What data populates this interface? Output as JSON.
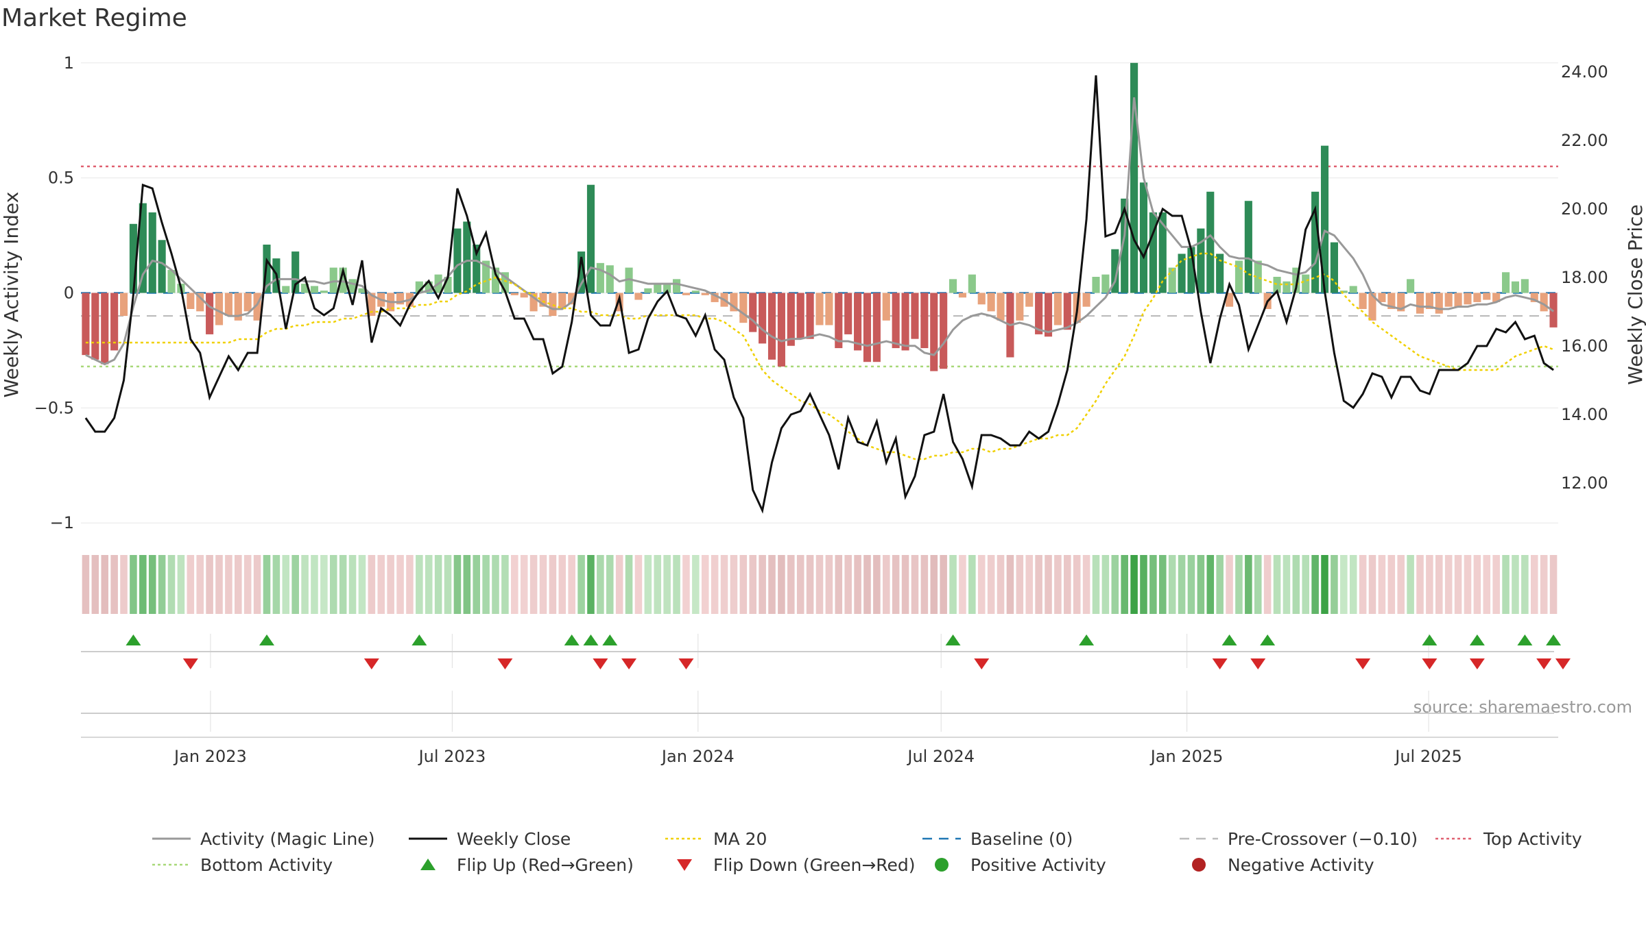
{
  "title": "Market Regime",
  "source": "source: sharemaestro.com",
  "colors": {
    "dark_green": "#2e8b57",
    "light_green": "#8bc98b",
    "dark_red": "#c85a5a",
    "light_red": "#e8a27c",
    "magic_line": "#999999",
    "close": "#111111",
    "ma20": "#f0d000",
    "baseline": "#1f77b4",
    "pre_crossover": "#bbbbbb",
    "top": "#e06070",
    "bottom": "#a8d878",
    "flip_up": "#2ca02c",
    "flip_down": "#d62728"
  },
  "chart_data": {
    "type": "bar+line",
    "title": "Market Regime",
    "xlabel": "",
    "ylabel_left": "Weekly Activity Index",
    "ylabel_right": "Weekly Close Price",
    "ylim_left": [
      -1.05,
      1.05
    ],
    "ylim_right": [
      10.5,
      24.6
    ],
    "left_ticks": [
      1,
      0.5,
      0,
      -0.5,
      -1
    ],
    "left_tick_labels": [
      "1",
      "0.5",
      "0",
      "−0.5",
      "−1"
    ],
    "right_ticks": [
      24,
      22,
      20,
      18,
      16,
      14,
      12
    ],
    "right_tick_labels": [
      "24.00",
      "22.00",
      "20.00",
      "18.00",
      "16.00",
      "14.00",
      "12.00"
    ],
    "x_start": "2022-09-26",
    "x_end": "2025-10-06",
    "date_ticks": [
      "2023-01-01",
      "2023-07-01",
      "2024-01-01",
      "2024-07-01",
      "2025-01-01",
      "2025-07-01"
    ],
    "date_tick_labels": [
      "Jan 2023",
      "Jul 2023",
      "Jan 2024",
      "Jul 2024",
      "Jan 2025",
      "Jul 2025"
    ],
    "reference_lines": {
      "baseline": 0,
      "pre_crossover": -0.1,
      "top_activity": 0.55,
      "bottom_activity": -0.32
    },
    "activity": [
      -0.27,
      -0.29,
      -0.31,
      -0.25,
      -0.1,
      0.3,
      0.39,
      0.35,
      0.23,
      0.1,
      0.04,
      -0.07,
      -0.08,
      -0.18,
      -0.14,
      -0.1,
      -0.12,
      -0.08,
      -0.12,
      0.21,
      0.15,
      0.03,
      0.18,
      0.04,
      0.03,
      0.01,
      0.11,
      0.11,
      0.06,
      0.02,
      -0.1,
      -0.06,
      -0.08,
      -0.05,
      -0.06,
      0.05,
      0.05,
      0.08,
      0.07,
      0.28,
      0.31,
      0.21,
      0.14,
      0.11,
      0.09,
      -0.01,
      -0.02,
      -0.08,
      -0.06,
      -0.1,
      -0.07,
      -0.05,
      0.18,
      0.47,
      0.13,
      0.12,
      -0.08,
      0.11,
      -0.03,
      0.02,
      0.04,
      0.04,
      0.06,
      -0.01,
      0.01,
      -0.01,
      -0.04,
      -0.06,
      -0.08,
      -0.13,
      -0.17,
      -0.22,
      -0.29,
      -0.32,
      -0.23,
      -0.2,
      -0.2,
      -0.14,
      -0.14,
      -0.24,
      -0.18,
      -0.25,
      -0.3,
      -0.3,
      -0.12,
      -0.24,
      -0.25,
      -0.2,
      -0.24,
      -0.34,
      -0.33,
      0.06,
      -0.02,
      0.08,
      -0.05,
      -0.08,
      -0.12,
      -0.28,
      -0.12,
      -0.06,
      -0.18,
      -0.19,
      -0.14,
      -0.16,
      -0.13,
      -0.06,
      0.07,
      0.08,
      0.19,
      0.41,
      1.0,
      0.48,
      0.35,
      0.35,
      0.11,
      0.17,
      0.2,
      0.28,
      0.44,
      0.17,
      -0.06,
      0.14,
      0.4,
      0.14,
      -0.07,
      0.07,
      0.05,
      0.11,
      0.08,
      0.44,
      0.64,
      0.22,
      0.01,
      0.03,
      -0.07,
      -0.12,
      -0.04,
      -0.07,
      -0.08,
      0.06,
      -0.09,
      -0.07,
      -0.09,
      -0.06,
      -0.06,
      -0.05,
      -0.04,
      -0.03,
      -0.04,
      0.09,
      0.05,
      0.06,
      -0.04,
      -0.08,
      -0.15
    ],
    "magic_line": [
      -0.27,
      -0.29,
      -0.31,
      -0.29,
      -0.22,
      -0.06,
      0.08,
      0.14,
      0.13,
      0.1,
      0.06,
      0.02,
      -0.02,
      -0.06,
      -0.08,
      -0.1,
      -0.1,
      -0.09,
      -0.05,
      0.03,
      0.06,
      0.06,
      0.06,
      0.05,
      0.05,
      0.04,
      0.05,
      0.05,
      0.04,
      0.03,
      -0.01,
      -0.03,
      -0.04,
      -0.04,
      -0.03,
      0,
      0.01,
      0.04,
      0.07,
      0.12,
      0.14,
      0.14,
      0.12,
      0.1,
      0.07,
      0.04,
      0.01,
      -0.02,
      -0.05,
      -0.07,
      -0.07,
      -0.04,
      0.04,
      0.11,
      0.1,
      0.08,
      0.05,
      0.06,
      0.05,
      0.04,
      0.04,
      0.04,
      0.04,
      0.03,
      0.02,
      0.01,
      -0.01,
      -0.03,
      -0.06,
      -0.09,
      -0.12,
      -0.16,
      -0.19,
      -0.21,
      -0.2,
      -0.2,
      -0.19,
      -0.18,
      -0.19,
      -0.21,
      -0.21,
      -0.22,
      -0.23,
      -0.22,
      -0.21,
      -0.22,
      -0.23,
      -0.23,
      -0.26,
      -0.27,
      -0.22,
      -0.16,
      -0.12,
      -0.1,
      -0.09,
      -0.1,
      -0.12,
      -0.14,
      -0.13,
      -0.14,
      -0.16,
      -0.17,
      -0.16,
      -0.15,
      -0.13,
      -0.1,
      -0.06,
      -0.02,
      0.05,
      0.25,
      0.85,
      0.5,
      0.35,
      0.3,
      0.25,
      0.2,
      0.2,
      0.22,
      0.25,
      0.2,
      0.16,
      0.15,
      0.15,
      0.13,
      0.12,
      0.1,
      0.09,
      0.08,
      0.09,
      0.13,
      0.27,
      0.25,
      0.2,
      0.15,
      0.08,
      -0.01,
      -0.05,
      -0.06,
      -0.07,
      -0.05,
      -0.06,
      -0.06,
      -0.07,
      -0.07,
      -0.06,
      -0.06,
      -0.05,
      -0.05,
      -0.04,
      -0.02,
      -0.01,
      -0.02,
      -0.03,
      -0.05,
      -0.08
    ],
    "close": [
      13.9,
      13.5,
      13.5,
      13.9,
      15.0,
      17.5,
      20.7,
      20.6,
      19.6,
      18.7,
      17.7,
      16.2,
      15.8,
      14.5,
      15.1,
      15.7,
      15.3,
      15.8,
      15.8,
      18.5,
      18.1,
      16.5,
      17.8,
      18.0,
      17.1,
      16.9,
      17.1,
      18.2,
      17.2,
      18.5,
      16.1,
      17.1,
      16.9,
      16.6,
      17.2,
      17.6,
      17.9,
      17.4,
      18.0,
      20.6,
      19.8,
      18.7,
      19.3,
      18.1,
      17.6,
      16.8,
      16.8,
      16.2,
      16.2,
      15.2,
      15.4,
      16.7,
      18.6,
      16.9,
      16.6,
      16.6,
      17.4,
      15.8,
      15.9,
      16.8,
      17.3,
      17.6,
      16.9,
      16.8,
      16.3,
      16.9,
      15.9,
      15.6,
      14.5,
      13.9,
      11.8,
      11.2,
      12.6,
      13.6,
      14.0,
      14.1,
      14.6,
      14.0,
      13.4,
      12.4,
      13.9,
      13.2,
      13.1,
      13.8,
      12.6,
      13.3,
      11.6,
      12.2,
      13.4,
      13.5,
      14.6,
      13.2,
      12.7,
      11.9,
      13.4,
      13.4,
      13.3,
      13.1,
      13.1,
      13.5,
      13.3,
      13.5,
      14.3,
      15.3,
      17.0,
      19.7,
      23.9,
      19.2,
      19.3,
      20.0,
      19.1,
      18.6,
      19.3,
      20.0,
      19.8,
      19.8,
      18.8,
      17.0,
      15.5,
      16.8,
      17.8,
      17.2,
      15.9,
      16.6,
      17.3,
      17.6,
      16.7,
      17.7,
      19.4,
      20.0,
      17.6,
      15.8,
      14.4,
      14.2,
      14.6,
      15.2,
      15.1,
      14.5,
      15.1,
      15.1,
      14.7,
      14.6,
      15.3,
      15.3,
      15.3,
      15.5,
      16.0,
      16.0,
      16.5,
      16.4,
      16.7,
      16.2,
      16.3,
      15.5,
      15.3
    ],
    "ma20": [
      16.1,
      16.1,
      16.1,
      16.1,
      16.1,
      16.1,
      16.1,
      16.1,
      16.1,
      16.1,
      16.1,
      16.1,
      16.1,
      16.1,
      16.1,
      16.1,
      16.2,
      16.2,
      16.2,
      16.4,
      16.5,
      16.5,
      16.6,
      16.6,
      16.7,
      16.7,
      16.7,
      16.8,
      16.8,
      16.9,
      17.0,
      17.0,
      17.1,
      17.1,
      17.1,
      17.2,
      17.2,
      17.3,
      17.3,
      17.5,
      17.6,
      17.8,
      17.9,
      18.0,
      17.9,
      17.8,
      17.6,
      17.5,
      17.3,
      17.2,
      17.1,
      17.1,
      17.0,
      17.0,
      16.9,
      16.9,
      16.9,
      16.8,
      16.8,
      16.9,
      16.9,
      16.9,
      16.9,
      16.9,
      16.9,
      16.8,
      16.8,
      16.7,
      16.5,
      16.3,
      15.8,
      15.3,
      15.0,
      14.8,
      14.6,
      14.4,
      14.3,
      14.1,
      14.0,
      13.8,
      13.5,
      13.3,
      13.1,
      13.0,
      12.9,
      12.9,
      12.8,
      12.7,
      12.7,
      12.8,
      12.8,
      12.9,
      12.9,
      13.0,
      13.0,
      12.9,
      13.0,
      13.0,
      13.1,
      13.2,
      13.3,
      13.3,
      13.4,
      13.4,
      13.6,
      14.0,
      14.4,
      14.9,
      15.3,
      15.7,
      16.3,
      17.0,
      17.4,
      17.9,
      18.2,
      18.5,
      18.6,
      18.7,
      18.7,
      18.5,
      18.4,
      18.3,
      18.1,
      18.0,
      17.9,
      17.8,
      17.8,
      17.8,
      17.9,
      18.0,
      18.1,
      17.9,
      17.5,
      17.2,
      17.0,
      16.7,
      16.5,
      16.3,
      16.1,
      15.9,
      15.7,
      15.6,
      15.5,
      15.4,
      15.3,
      15.3,
      15.3,
      15.3,
      15.3,
      15.5,
      15.7,
      15.8,
      15.9,
      16.0,
      15.9
    ],
    "flip_up_weeks": [
      5,
      19,
      35,
      51,
      53,
      55,
      91,
      105,
      120,
      124,
      141,
      146,
      151,
      154
    ],
    "flip_down_weeks": [
      11,
      30,
      44,
      54,
      57,
      63,
      94,
      119,
      123,
      134,
      141,
      146,
      153,
      155
    ],
    "legend": [
      {
        "label": "Activity (Magic Line)",
        "kind": "line",
        "color": "#999999"
      },
      {
        "label": "Weekly Close",
        "kind": "line",
        "color": "#111111"
      },
      {
        "label": "MA 20",
        "kind": "dotted",
        "color": "#f0d000"
      },
      {
        "label": "Baseline (0)",
        "kind": "dashed",
        "color": "#1f77b4"
      },
      {
        "label": "Pre-Crossover (−0.10)",
        "kind": "dashed",
        "color": "#bbbbbb"
      },
      {
        "label": "Top Activity",
        "kind": "dotted",
        "color": "#e06070"
      },
      {
        "label": "Bottom Activity",
        "kind": "dotted",
        "color": "#a8d878"
      },
      {
        "label": "Flip Up (Red→Green)",
        "kind": "triangle-up",
        "color": "#2ca02c"
      },
      {
        "label": "Flip Down (Green→Red)",
        "kind": "triangle-down",
        "color": "#d62728"
      },
      {
        "label": "Positive Activity",
        "kind": "circle",
        "color": "#2ca02c"
      },
      {
        "label": "Negative Activity",
        "kind": "circle",
        "color": "#b22222"
      }
    ]
  }
}
